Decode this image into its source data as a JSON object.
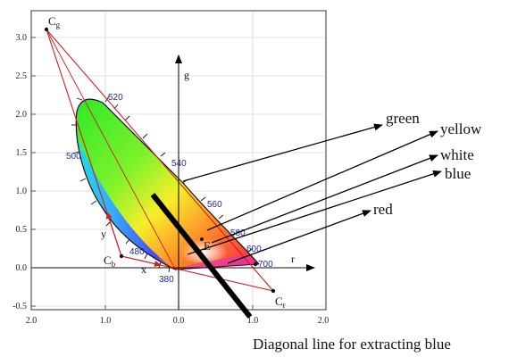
{
  "axes": {
    "x_ticks": [
      "2.0",
      "1.0",
      "0.0",
      "1.0",
      "2.0"
    ],
    "y_ticks": [
      "3.0",
      "2.5",
      "2.0",
      "1.5",
      "1.0",
      "0.5",
      "0.0",
      "-0.5"
    ],
    "r_label": "r",
    "g_label": "g",
    "x_label": "x",
    "y_label": "y"
  },
  "primaries": {
    "cg_main": "C",
    "cg_sub": "g",
    "cb_main": "C",
    "cb_sub": "b",
    "cr_main": "C",
    "cr_sub": "r",
    "e_label": "E"
  },
  "wavelengths": [
    "520",
    "500",
    "540",
    "560",
    "580",
    "600",
    "480",
    "700",
    "380"
  ],
  "callouts": {
    "green": "green",
    "yellow": "yellow",
    "white": "white",
    "blue": "blue",
    "red": "red"
  },
  "caption": "Diagonal line for extracting blue",
  "colors": {
    "triangle": "#cc1f1f",
    "arrow": "#000000",
    "wavelength_text": "#1c2a9e"
  }
}
